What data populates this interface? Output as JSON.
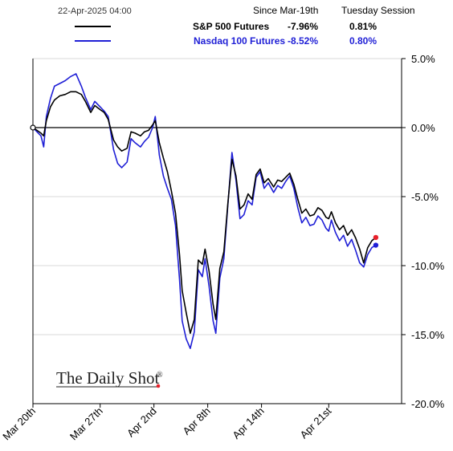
{
  "timestamp": "22-Apr-2025 04:00",
  "legend": {
    "col_since_header": "Since Mar-19th",
    "col_session_header": "Tuesday Session",
    "rows": [
      {
        "name": "S&P 500 Futures",
        "since": "-7.96%",
        "session": "0.81%",
        "color": "#000000"
      },
      {
        "name": "Nasdaq 100 Futures",
        "since": "-8.52%",
        "session": "0.80%",
        "color": "#1f1fd6"
      }
    ]
  },
  "brand": {
    "text": "The Daily Shot",
    "mark": "®",
    "dot_color": "#e8202a"
  },
  "colors": {
    "spx": "#000000",
    "ndx": "#1f1fd6",
    "zero_line": "#000000",
    "grid": "#d9d9d9",
    "end_marker": "#e8202a",
    "end_marker_ndx": "#1f1fd6"
  },
  "chart_data": {
    "type": "line",
    "x_unit": "trading days",
    "ylim": [
      -20,
      5
    ],
    "yticks": [
      5,
      0,
      -5,
      -10,
      -15,
      -20
    ],
    "ytick_labels": [
      "5.0%",
      "0.0%",
      "-5.0%",
      "-10.0%",
      "-15.0%",
      "-20.0%"
    ],
    "xticks": [
      0,
      5,
      9,
      13,
      17,
      22
    ],
    "xtick_labels": [
      "Mar 20th",
      "Mar 27th",
      "Apr 2nd",
      "Apr 8th",
      "Apr 14th",
      "Apr 21st"
    ],
    "xlim": [
      0,
      27
    ],
    "grid": true,
    "series": [
      {
        "name": "S&P 500 Futures",
        "x": [
          0,
          0.3,
          0.6,
          0.8,
          1.0,
          1.3,
          1.6,
          2.0,
          2.4,
          2.8,
          3.2,
          3.6,
          3.9,
          4.3,
          4.6,
          5.0,
          5.3,
          5.6,
          6.0,
          6.3,
          6.6,
          7.0,
          7.3,
          7.6,
          8.0,
          8.3,
          8.6,
          8.9,
          9.1,
          9.4,
          9.7,
          10.0,
          10.3,
          10.6,
          10.9,
          11.1,
          11.4,
          11.7,
          12.0,
          12.3,
          12.6,
          12.8,
          13.1,
          13.4,
          13.6,
          13.9,
          14.2,
          14.5,
          14.8,
          15.1,
          15.4,
          15.7,
          16.0,
          16.3,
          16.6,
          16.9,
          17.2,
          17.5,
          17.9,
          18.2,
          18.5,
          18.8,
          19.1,
          19.4,
          19.7,
          20.0,
          20.3,
          20.6,
          20.9,
          21.2,
          21.5,
          21.8,
          22.0,
          22.2,
          22.5,
          22.8,
          23.1,
          23.4,
          23.7,
          24.0,
          24.3,
          24.6,
          24.9,
          25.2,
          25.5
        ],
        "y": [
          0.0,
          -0.2,
          -0.4,
          -0.6,
          0.5,
          1.5,
          2.0,
          2.3,
          2.4,
          2.6,
          2.6,
          2.4,
          1.9,
          1.1,
          1.6,
          1.3,
          1.1,
          0.6,
          -0.9,
          -1.4,
          -1.7,
          -1.5,
          -0.3,
          -0.4,
          -0.6,
          -0.3,
          -0.2,
          0.2,
          0.5,
          -1.1,
          -2.2,
          -3.2,
          -4.6,
          -6.2,
          -9.2,
          -11.8,
          -13.4,
          -14.9,
          -13.9,
          -9.6,
          -9.9,
          -8.8,
          -10.4,
          -12.8,
          -13.9,
          -10.2,
          -9.0,
          -5.5,
          -2.3,
          -3.5,
          -5.9,
          -5.6,
          -4.8,
          -5.2,
          -3.4,
          -3.0,
          -4.0,
          -3.7,
          -4.3,
          -3.8,
          -3.9,
          -3.6,
          -3.3,
          -4.1,
          -5.2,
          -6.2,
          -5.9,
          -6.4,
          -6.3,
          -5.8,
          -6.0,
          -6.5,
          -6.6,
          -6.1,
          -6.9,
          -7.4,
          -7.1,
          -7.8,
          -7.4,
          -8.0,
          -8.8,
          -9.8,
          -8.7,
          -8.2,
          -7.96
        ]
      },
      {
        "name": "Nasdaq 100 Futures",
        "x": [
          0,
          0.3,
          0.6,
          0.8,
          1.0,
          1.3,
          1.6,
          2.0,
          2.4,
          2.8,
          3.2,
          3.6,
          3.9,
          4.3,
          4.6,
          5.0,
          5.3,
          5.6,
          6.0,
          6.3,
          6.6,
          7.0,
          7.3,
          7.6,
          8.0,
          8.3,
          8.6,
          8.9,
          9.1,
          9.4,
          9.7,
          10.0,
          10.3,
          10.6,
          10.9,
          11.1,
          11.4,
          11.7,
          12.0,
          12.3,
          12.6,
          12.8,
          13.1,
          13.4,
          13.6,
          13.9,
          14.2,
          14.5,
          14.8,
          15.1,
          15.4,
          15.7,
          16.0,
          16.3,
          16.6,
          16.9,
          17.2,
          17.5,
          17.9,
          18.2,
          18.5,
          18.8,
          19.1,
          19.4,
          19.7,
          20.0,
          20.3,
          20.6,
          20.9,
          21.2,
          21.5,
          21.8,
          22.0,
          22.2,
          22.5,
          22.8,
          23.1,
          23.4,
          23.7,
          24.0,
          24.3,
          24.6,
          24.9,
          25.2,
          25.5
        ],
        "y": [
          0.0,
          -0.3,
          -0.6,
          -1.4,
          0.8,
          2.1,
          3.0,
          3.2,
          3.4,
          3.7,
          3.9,
          3.0,
          2.2,
          1.3,
          1.9,
          1.5,
          1.2,
          0.8,
          -1.6,
          -2.6,
          -2.9,
          -2.5,
          -0.8,
          -1.1,
          -1.4,
          -1.0,
          -0.7,
          0.0,
          0.8,
          -2.0,
          -3.5,
          -4.4,
          -5.2,
          -7.1,
          -11.0,
          -14.0,
          -15.3,
          -16.0,
          -14.8,
          -10.3,
          -10.8,
          -9.5,
          -11.5,
          -14.0,
          -14.9,
          -10.9,
          -9.5,
          -5.6,
          -1.8,
          -3.8,
          -6.6,
          -6.3,
          -5.3,
          -5.6,
          -3.6,
          -3.2,
          -4.4,
          -4.0,
          -4.7,
          -4.2,
          -4.4,
          -3.9,
          -3.5,
          -4.4,
          -5.8,
          -6.9,
          -6.5,
          -7.1,
          -7.0,
          -6.4,
          -6.7,
          -7.3,
          -7.5,
          -6.7,
          -7.6,
          -8.2,
          -7.8,
          -8.6,
          -8.1,
          -8.9,
          -9.8,
          -10.1,
          -9.2,
          -8.7,
          -8.52
        ]
      }
    ]
  }
}
